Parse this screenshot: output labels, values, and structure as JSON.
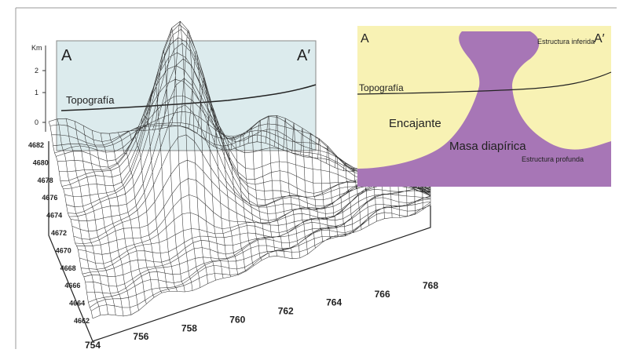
{
  "section_panel": {
    "left_label": "A",
    "right_label": "A′",
    "unit_label": "Km",
    "km_ticks": [
      "2",
      "1",
      "0"
    ],
    "topography_label": "Topografía"
  },
  "block_diagram": {
    "y_axis_labels": [
      "4682",
      "4680",
      "4678",
      "4676",
      "4674",
      "4672",
      "4670",
      "4668",
      "4666",
      "4664",
      "4662"
    ],
    "x_axis_labels": [
      "754",
      "756",
      "758",
      "760",
      "762",
      "764",
      "766",
      "768"
    ]
  },
  "interpretation_panel": {
    "left_label": "A",
    "right_label": "A′",
    "upper_structure_label": "Estructura inferida",
    "topography_label": "Topografía",
    "host_rock_label": "Encajante",
    "diapir_label": "Masa diapírica",
    "deep_structure_label": "Estructura profunda",
    "colors": {
      "host_rock": "#f8f2b4",
      "diapir": "#a776b6"
    }
  }
}
